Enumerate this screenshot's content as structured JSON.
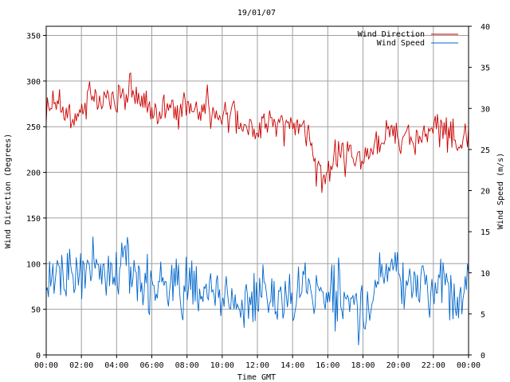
{
  "chart_data": {
    "type": "line",
    "title": "19/01/07",
    "xlabel": "Time GMT",
    "ylabel_left": "Wind Direction (Degrees)",
    "ylabel_right": "Wind Speed (m/s)",
    "x_ticks": [
      "00:00",
      "02:00",
      "04:00",
      "06:00",
      "08:00",
      "10:00",
      "12:00",
      "14:00",
      "16:00",
      "18:00",
      "20:00",
      "22:00",
      "00:00"
    ],
    "x_range_hours": [
      0,
      24
    ],
    "ylim_left": [
      0,
      360
    ],
    "y_ticks_left": [
      "0",
      "50",
      "100",
      "150",
      "200",
      "250",
      "300",
      "350"
    ],
    "ylim_right": [
      0,
      40
    ],
    "y_ticks_right": [
      "0",
      "5",
      "10",
      "15",
      "20",
      "25",
      "30",
      "35",
      "40"
    ],
    "grid": true,
    "legend": "top-right",
    "series": [
      {
        "name": "Wind Direction",
        "axis": "left",
        "color": "#cc0000",
        "hours": [
          0,
          0.5,
          1,
          1.5,
          2,
          2.5,
          3,
          3.5,
          4,
          4.5,
          5,
          5.5,
          6,
          6.5,
          7,
          7.5,
          8,
          8.5,
          9,
          9.5,
          10,
          10.5,
          11,
          11.5,
          12,
          12.5,
          13,
          13.5,
          14,
          14.5,
          15,
          15.25,
          15.5,
          16,
          16.5,
          17,
          17.5,
          18,
          18.5,
          19,
          19.5,
          20,
          20.5,
          21,
          21.5,
          22,
          22.5,
          23,
          23.5,
          24
        ],
        "values": [
          265,
          280,
          270,
          255,
          270,
          280,
          275,
          278,
          280,
          285,
          285,
          280,
          265,
          270,
          275,
          260,
          275,
          270,
          275,
          265,
          260,
          270,
          255,
          250,
          250,
          255,
          260,
          245,
          245,
          255,
          240,
          210,
          195,
          200,
          215,
          220,
          210,
          215,
          230,
          240,
          245,
          240,
          245,
          235,
          240,
          245,
          250,
          245,
          225,
          250
        ]
      },
      {
        "name": "Wind Speed",
        "axis": "right",
        "color": "#0066cc",
        "hours": [
          0,
          0.5,
          1,
          1.5,
          2,
          2.5,
          3,
          3.5,
          4,
          4.5,
          5,
          5.5,
          6,
          6.5,
          7,
          7.5,
          8,
          8.5,
          9,
          9.5,
          10,
          10.5,
          11,
          11.5,
          12,
          12.5,
          13,
          13.5,
          14,
          14.5,
          15,
          15.5,
          16,
          16.5,
          17,
          17.5,
          18,
          18.5,
          19,
          19.5,
          20,
          20.5,
          21,
          21.5,
          22,
          22.5,
          23,
          23.5,
          24
        ],
        "values": [
          8,
          10,
          9,
          9,
          10,
          11,
          10,
          9,
          11,
          12,
          10,
          7,
          8,
          9,
          9,
          7,
          8,
          8,
          7,
          9,
          7,
          6,
          5,
          7,
          7,
          7,
          8,
          8,
          6,
          7,
          8,
          7,
          7,
          8,
          6,
          6,
          5,
          6,
          10,
          11,
          10,
          8,
          8,
          9,
          7,
          9,
          8,
          6,
          10
        ]
      }
    ]
  }
}
